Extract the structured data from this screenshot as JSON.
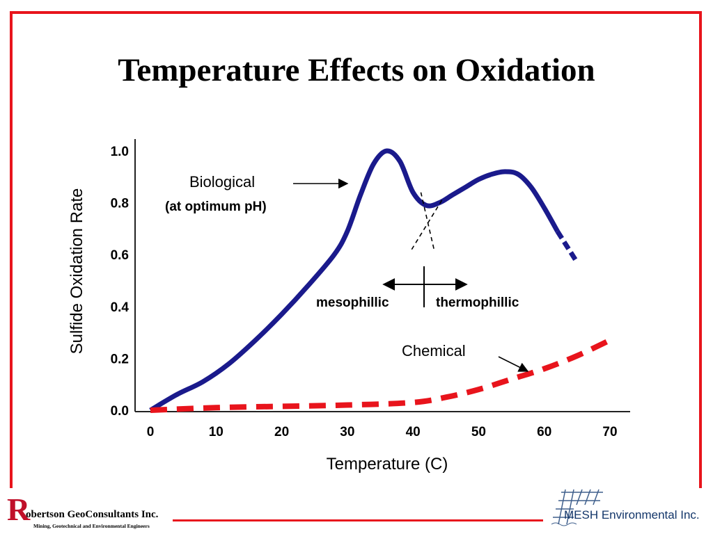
{
  "slide": {
    "title": "Temperature Effects on Oxidation"
  },
  "chart_data": {
    "type": "line",
    "xlabel": "Temperature (C)",
    "ylabel": "Sulfide Oxidation Rate",
    "xlim": [
      0,
      70
    ],
    "ylim": [
      0,
      1.0
    ],
    "x_ticks": [
      "0",
      "10",
      "20",
      "30",
      "40",
      "50",
      "60",
      "70"
    ],
    "y_ticks": [
      "0.0",
      "0.2",
      "0.4",
      "0.6",
      "0.8",
      "1.0"
    ],
    "grid": false,
    "series": [
      {
        "name": "Biological",
        "style": "solid",
        "color": "#1a1a8c",
        "x": [
          0,
          4,
          8,
          12,
          16,
          20,
          24,
          28,
          30,
          32,
          34,
          36,
          38,
          40,
          42,
          44,
          46,
          48,
          50,
          52,
          54,
          56,
          58,
          60,
          62
        ],
        "y": [
          0.0,
          0.06,
          0.11,
          0.18,
          0.27,
          0.37,
          0.48,
          0.6,
          0.69,
          0.83,
          0.95,
          1.0,
          0.96,
          0.84,
          0.79,
          0.8,
          0.83,
          0.86,
          0.89,
          0.91,
          0.92,
          0.91,
          0.86,
          0.78,
          0.69
        ]
      },
      {
        "name": "Biological (extrapolated)",
        "style": "dashed",
        "color": "#1a1a8c",
        "x": [
          62,
          63,
          64,
          65
        ],
        "y": [
          0.69,
          0.65,
          0.61,
          0.57
        ]
      },
      {
        "name": "Chemical",
        "style": "dashed",
        "color": "#e8141c",
        "x": [
          0,
          10,
          20,
          30,
          40,
          45,
          50,
          55,
          60,
          65,
          70
        ],
        "y": [
          0.0,
          0.01,
          0.015,
          0.02,
          0.03,
          0.05,
          0.08,
          0.12,
          0.16,
          0.21,
          0.27
        ]
      },
      {
        "name": "mesophillic extension",
        "style": "dotted",
        "color": "#000000",
        "x": [
          41.2,
          43.2
        ],
        "y": [
          0.84,
          0.62
        ]
      },
      {
        "name": "thermophillic extension",
        "style": "dotted",
        "color": "#000000",
        "x": [
          44.4,
          39.8
        ],
        "y": [
          0.81,
          0.62
        ]
      }
    ],
    "annotations": [
      {
        "text": "Biological",
        "target": "Biological"
      },
      {
        "text": "(at optimum pH)"
      },
      {
        "text": "mesophillic"
      },
      {
        "text": "thermophillic"
      },
      {
        "text": "Chemical",
        "target": "Chemical"
      }
    ]
  },
  "logos": {
    "left_initial": "R",
    "left_name": "obertson GeoConsultants Inc.",
    "left_tagline": "Mining, Geotechnical and Environmental Engineers",
    "right_name": "MESH Environmental Inc."
  }
}
